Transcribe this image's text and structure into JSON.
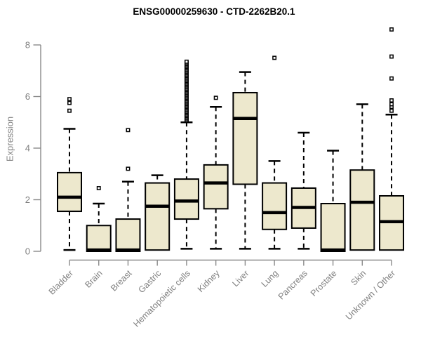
{
  "colors": {
    "background": "#FFFFFF",
    "box_fill": "#EDE8CD",
    "box_border": "#000000",
    "median": "#000000",
    "whisker": "#000000",
    "axis": "#8A8A8A",
    "tick_label": "#808080",
    "title": "#000000"
  },
  "chart_data": {
    "type": "boxplot",
    "title": "ENSG00000259630 - CTD-2262B20.1",
    "ylabel": "Expression",
    "xlabel": "",
    "ylim": [
      0,
      8
    ],
    "yticks": [
      0,
      2,
      4,
      6,
      8
    ],
    "grid": false,
    "legend": "none",
    "x_tick_rotation_deg": 45,
    "categories": [
      "Bladder",
      "Brain",
      "Breast",
      "Gastric",
      "Hematopoietic cells",
      "Kidney",
      "Liver",
      "Lung",
      "Pancreas",
      "Prostate",
      "Skin",
      "Unknown / Other"
    ],
    "series": [
      {
        "category": "Bladder",
        "whisker_low": 0.05,
        "q1": 1.55,
        "median": 2.1,
        "q3": 3.05,
        "whisker_high": 4.75,
        "outliers": [
          5.45,
          5.75,
          5.9
        ]
      },
      {
        "category": "Brain",
        "whisker_low": 0,
        "q1": 0,
        "median": 0.05,
        "q3": 1.0,
        "whisker_high": 1.85,
        "outliers": [
          2.45
        ]
      },
      {
        "category": "Breast",
        "whisker_low": 0,
        "q1": 0,
        "median": 0.05,
        "q3": 1.25,
        "whisker_high": 2.7,
        "outliers": [
          3.2,
          4.7
        ]
      },
      {
        "category": "Gastric",
        "whisker_low": 0.05,
        "q1": 0.05,
        "median": 1.75,
        "q3": 2.65,
        "whisker_high": 2.95,
        "outliers": []
      },
      {
        "category": "Hematopoietic cells",
        "whisker_low": 0.1,
        "q1": 1.25,
        "median": 1.95,
        "q3": 2.8,
        "whisker_high": 5.0,
        "outliers": [
          5.05,
          5.1,
          5.15,
          5.2,
          5.25,
          5.3,
          5.35,
          5.4,
          5.45,
          5.5,
          5.55,
          5.6,
          5.65,
          5.7,
          5.75,
          5.8,
          5.85,
          5.9,
          5.95,
          6.0,
          6.05,
          6.1,
          6.15,
          6.2,
          6.25,
          6.3,
          6.35,
          6.4,
          6.45,
          6.5,
          6.55,
          6.6,
          6.65,
          6.7,
          6.75,
          6.8,
          6.85,
          6.9,
          6.95,
          7.0,
          7.05,
          7.1,
          7.15,
          7.2,
          7.25,
          7.3,
          7.35
        ]
      },
      {
        "category": "Kidney",
        "whisker_low": 0.1,
        "q1": 1.65,
        "median": 2.65,
        "q3": 3.35,
        "whisker_high": 5.6,
        "outliers": [
          5.95
        ]
      },
      {
        "category": "Liver",
        "whisker_low": 0.1,
        "q1": 2.6,
        "median": 5.15,
        "q3": 6.15,
        "whisker_high": 6.95,
        "outliers": []
      },
      {
        "category": "Lung",
        "whisker_low": 0.1,
        "q1": 0.85,
        "median": 1.5,
        "q3": 2.65,
        "whisker_high": 3.5,
        "outliers": [
          7.5
        ]
      },
      {
        "category": "Pancreas",
        "whisker_low": 0.1,
        "q1": 0.9,
        "median": 1.7,
        "q3": 2.45,
        "whisker_high": 4.6,
        "outliers": []
      },
      {
        "category": "Prostate",
        "whisker_low": 0,
        "q1": 0,
        "median": 0.05,
        "q3": 1.85,
        "whisker_high": 3.9,
        "outliers": []
      },
      {
        "category": "Skin",
        "whisker_low": 0.05,
        "q1": 0.05,
        "median": 1.9,
        "q3": 3.15,
        "whisker_high": 5.7,
        "outliers": []
      },
      {
        "category": "Unknown / Other",
        "whisker_low": 0.05,
        "q1": 0.05,
        "median": 1.15,
        "q3": 2.15,
        "whisker_high": 5.3,
        "outliers": [
          5.45,
          5.6,
          5.7,
          5.85,
          6.7,
          7.55,
          8.6
        ]
      }
    ]
  }
}
